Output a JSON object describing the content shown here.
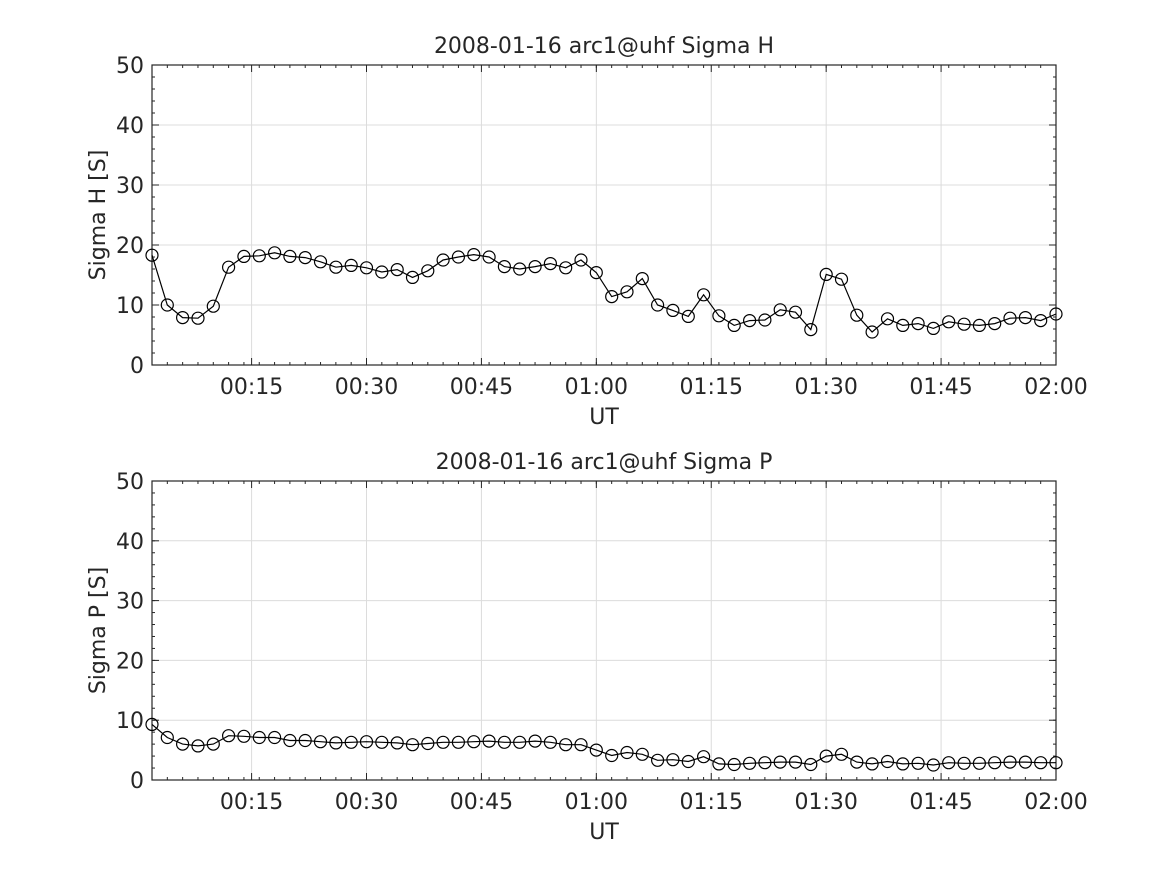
{
  "chart_data": [
    {
      "type": "line",
      "title": "2008-01-16  arc1@uhf Sigma H",
      "xlabel": "UT",
      "ylabel": "Sigma H [S]",
      "xlim": [
        "00:02",
        "02:00"
      ],
      "ylim": [
        0,
        50
      ],
      "x_ticks": [
        "00:15",
        "00:30",
        "00:45",
        "01:00",
        "01:15",
        "01:30",
        "01:45",
        "02:00"
      ],
      "y_ticks": [
        "0",
        "10",
        "20",
        "30",
        "40",
        "50"
      ],
      "grid": true,
      "marker": "circle",
      "color": "#000000",
      "series": [
        {
          "x": [
            "00:02",
            "00:04",
            "00:06",
            "00:08",
            "00:10",
            "00:12",
            "00:14",
            "00:16",
            "00:18",
            "00:20",
            "00:22",
            "00:24",
            "00:26",
            "00:28",
            "00:30",
            "00:32",
            "00:34",
            "00:36",
            "00:38",
            "00:40",
            "00:42",
            "00:44",
            "00:46",
            "00:48",
            "00:50",
            "00:52",
            "00:54",
            "00:56",
            "00:58",
            "01:00",
            "01:02",
            "01:04",
            "01:06",
            "01:08",
            "01:10",
            "01:12",
            "01:14",
            "01:16",
            "01:18",
            "01:20",
            "01:22",
            "01:24",
            "01:26",
            "01:28",
            "01:30",
            "01:32",
            "01:34",
            "01:36",
            "01:38",
            "01:40",
            "01:42",
            "01:44",
            "01:46",
            "01:48",
            "01:50",
            "01:52",
            "01:54",
            "01:56",
            "01:58",
            "02:00"
          ],
          "values": [
            18.3,
            10.0,
            7.9,
            7.8,
            9.8,
            16.3,
            18.1,
            18.2,
            18.7,
            18.1,
            17.9,
            17.2,
            16.3,
            16.6,
            16.2,
            15.5,
            15.9,
            14.6,
            15.7,
            17.5,
            18.0,
            18.4,
            18.0,
            16.4,
            16.0,
            16.4,
            16.9,
            16.2,
            17.5,
            15.4,
            11.4,
            12.2,
            14.4,
            10.0,
            9.1,
            8.1,
            11.7,
            8.2,
            6.6,
            7.4,
            7.5,
            9.2,
            8.8,
            5.9,
            15.1,
            14.3,
            8.3,
            5.5,
            7.7,
            6.6,
            6.9,
            6.1,
            7.2,
            6.8,
            6.6,
            6.9,
            7.8,
            7.9,
            7.4,
            8.5
          ]
        }
      ]
    },
    {
      "type": "line",
      "title": "2008-01-16  arc1@uhf Sigma P",
      "xlabel": "UT",
      "ylabel": "Sigma P [S]",
      "xlim": [
        "00:02",
        "02:00"
      ],
      "ylim": [
        0,
        50
      ],
      "x_ticks": [
        "00:15",
        "00:30",
        "00:45",
        "01:00",
        "01:15",
        "01:30",
        "01:45",
        "02:00"
      ],
      "y_ticks": [
        "0",
        "10",
        "20",
        "30",
        "40",
        "50"
      ],
      "grid": true,
      "marker": "circle",
      "color": "#000000",
      "series": [
        {
          "x": [
            "00:02",
            "00:04",
            "00:06",
            "00:08",
            "00:10",
            "00:12",
            "00:14",
            "00:16",
            "00:18",
            "00:20",
            "00:22",
            "00:24",
            "00:26",
            "00:28",
            "00:30",
            "00:32",
            "00:34",
            "00:36",
            "00:38",
            "00:40",
            "00:42",
            "00:44",
            "00:46",
            "00:48",
            "00:50",
            "00:52",
            "00:54",
            "00:56",
            "00:58",
            "01:00",
            "01:02",
            "01:04",
            "01:06",
            "01:08",
            "01:10",
            "01:12",
            "01:14",
            "01:16",
            "01:18",
            "01:20",
            "01:22",
            "01:24",
            "01:26",
            "01:28",
            "01:30",
            "01:32",
            "01:34",
            "01:36",
            "01:38",
            "01:40",
            "01:42",
            "01:44",
            "01:46",
            "01:48",
            "01:50",
            "01:52",
            "01:54",
            "01:56",
            "01:58",
            "02:00"
          ],
          "values": [
            9.3,
            7.1,
            6.0,
            5.7,
            6.0,
            7.4,
            7.3,
            7.1,
            7.1,
            6.6,
            6.6,
            6.4,
            6.2,
            6.3,
            6.4,
            6.3,
            6.2,
            5.9,
            6.1,
            6.3,
            6.3,
            6.4,
            6.5,
            6.3,
            6.3,
            6.5,
            6.3,
            5.9,
            5.9,
            5.0,
            4.1,
            4.6,
            4.3,
            3.3,
            3.4,
            3.1,
            3.9,
            2.7,
            2.6,
            2.8,
            2.9,
            3.0,
            3.0,
            2.6,
            4.0,
            4.3,
            3.0,
            2.7,
            3.1,
            2.7,
            2.8,
            2.5,
            2.9,
            2.8,
            2.8,
            2.9,
            3.0,
            3.0,
            2.9,
            2.9
          ]
        }
      ]
    }
  ]
}
